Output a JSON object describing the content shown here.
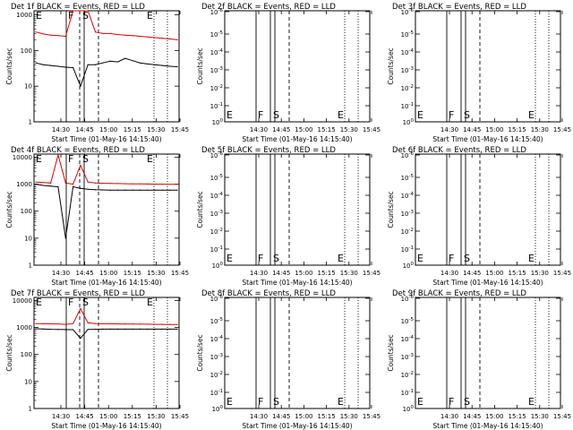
{
  "colors": {
    "events": "#000000",
    "lld": "#e00000",
    "axis": "#000000",
    "background": "#ffffff"
  },
  "chart_data": [
    {
      "type": "line",
      "title": "Det 1f BLACK = Events, RED = LLD",
      "xlabel": "Start Time (01-May-16 14:15:40)",
      "ylabel": "Counts/sec",
      "xticks": [
        "14:30",
        "14:45",
        "15:00",
        "15:15",
        "15:30",
        "15:45"
      ],
      "yticks": [
        "1",
        "10",
        "100",
        "1000"
      ],
      "yscale": "log",
      "ylim": [
        1,
        1300
      ],
      "markers": [
        "E",
        "F",
        "S",
        "E"
      ],
      "dotted_grid_x": [
        "15:30",
        "15:45"
      ],
      "series": [
        {
          "values": [
            330,
            290,
            270,
            260,
            250,
            1300,
            1300,
            1300,
            330,
            300,
            300,
            280,
            270,
            260,
            250,
            240,
            230,
            220,
            210,
            200
          ]
        },
        {
          "values": [
            45,
            40,
            38,
            36,
            34,
            33,
            10,
            40,
            40,
            45,
            50,
            48,
            60,
            52,
            45,
            42,
            40,
            38,
            36,
            35
          ]
        }
      ]
    },
    {
      "type": "line",
      "title": "Det 2f BLACK = Events, RED = LLD",
      "xlabel": "Start Time (01-May-16 14:15:40)",
      "ylabel": "Counts/sec",
      "xticks": [
        "14:30",
        "14:45",
        "15:00",
        "15:15",
        "15:30",
        "15:45"
      ],
      "yticks": [
        "10^0",
        "10^-1",
        "10^-2",
        "10^-3",
        "10^-4",
        "10^-5",
        "10^-6"
      ],
      "markers": [
        "E",
        "F",
        "S",
        "E"
      ],
      "series": []
    },
    {
      "type": "line",
      "title": "Det 3f BLACK = Events, RED = LLD",
      "xlabel": "Start Time (01-May-16 14:15:40)",
      "ylabel": "Counts/sec",
      "xticks": [
        "14:30",
        "14:45",
        "15:00",
        "15:15",
        "15:30",
        "15:45"
      ],
      "yticks": [
        "10^0",
        "10^-1",
        "10^-2",
        "10^-3",
        "10^-4",
        "10^-5",
        "10^-6"
      ],
      "markers": [
        "E",
        "F",
        "S",
        "E"
      ],
      "series": []
    },
    {
      "type": "line",
      "title": "Det 4f BLACK = Events, RED = LLD",
      "xlabel": "Start Time (01-May-16 14:15:40)",
      "ylabel": "Counts/sec",
      "xticks": [
        "14:30",
        "14:45",
        "15:00",
        "15:15",
        "15:30",
        "15:45"
      ],
      "yticks": [
        "1",
        "10",
        "100",
        "1000",
        "10000"
      ],
      "yscale": "log",
      "ylim": [
        1,
        13000
      ],
      "markers": [
        "E",
        "F",
        "S",
        "E"
      ],
      "dotted_grid_x": [
        "15:30",
        "15:45"
      ],
      "series": [
        {
          "values": [
            1200,
            1150,
            1100,
            12000,
            1100,
            1000,
            5000,
            1200,
            1100,
            1080,
            1060,
            1050,
            1040,
            1030,
            1020,
            1010,
            1000,
            1000,
            990,
            980
          ]
        },
        {
          "values": [
            1000,
            900,
            850,
            800,
            10,
            800,
            700,
            650,
            620,
            610,
            600,
            600,
            600,
            600,
            600,
            600,
            600,
            600,
            600,
            600
          ]
        }
      ]
    },
    {
      "type": "line",
      "title": "Det 5f BLACK = Events, RED = LLD",
      "xlabel": "Start Time (01-May-16 14:15:40)",
      "ylabel": "Counts/sec",
      "xticks": [
        "14:30",
        "14:45",
        "15:00",
        "15:15",
        "15:30",
        "15:45"
      ],
      "yticks": [
        "10^0",
        "10^-1",
        "10^-2",
        "10^-3",
        "10^-4",
        "10^-5",
        "10^-6"
      ],
      "markers": [
        "E",
        "F",
        "S",
        "E"
      ],
      "series": []
    },
    {
      "type": "line",
      "title": "Det 6f BLACK = Events, RED = LLD",
      "xlabel": "Start Time (01-May-16 14:15:40)",
      "ylabel": "Counts/sec",
      "xticks": [
        "14:30",
        "14:45",
        "15:00",
        "15:15",
        "15:30",
        "15:45"
      ],
      "yticks": [
        "10^0",
        "10^-1",
        "10^-2",
        "10^-3",
        "10^-4",
        "10^-5",
        "10^-6"
      ],
      "markers": [
        "E",
        "F",
        "S",
        "E"
      ],
      "series": []
    },
    {
      "type": "line",
      "title": "Det 7f BLACK = Events, RED = LLD",
      "xlabel": "Start Time (01-May-16 14:15:40)",
      "ylabel": "Counts/sec",
      "xticks": [
        "14:30",
        "14:45",
        "15:00",
        "15:15",
        "15:30",
        "15:45"
      ],
      "yticks": [
        "1",
        "10",
        "100",
        "1000",
        "10000"
      ],
      "yscale": "log",
      "ylim": [
        1,
        13000
      ],
      "markers": [
        "E",
        "F",
        "S",
        "E"
      ],
      "dotted_grid_x": [
        "15:30",
        "15:45"
      ],
      "series": [
        {
          "values": [
            1400,
            1380,
            1370,
            1360,
            1300,
            1400,
            5000,
            1500,
            1400,
            1380,
            1370,
            1360,
            1350,
            1340,
            1330,
            1320,
            1310,
            1300,
            1290,
            1280
          ]
        },
        {
          "values": [
            900,
            880,
            860,
            850,
            840,
            830,
            400,
            850,
            860,
            870,
            870,
            870,
            870,
            870,
            870,
            870,
            870,
            870,
            870,
            870
          ]
        }
      ]
    },
    {
      "type": "line",
      "title": "Det 8f BLACK = Events, RED = LLD",
      "xlabel": "Start Time (01-May-16 14:15:40)",
      "ylabel": "Counts/sec",
      "xticks": [
        "14:30",
        "14:45",
        "15:00",
        "15:15",
        "15:30",
        "15:45"
      ],
      "yticks": [
        "10^0",
        "10^-1",
        "10^-2",
        "10^-3",
        "10^-4",
        "10^-5",
        "10^-6"
      ],
      "markers": [
        "E",
        "F",
        "S",
        "E"
      ],
      "series": []
    },
    {
      "type": "line",
      "title": "Det 9f BLACK = Events, RED = LLD",
      "xlabel": "Start Time (01-May-16 14:15:40)",
      "ylabel": "Counts/sec",
      "xticks": [
        "14:30",
        "14:45",
        "15:00",
        "15:15",
        "15:30",
        "15:45"
      ],
      "yticks": [
        "10^0",
        "10^-1",
        "10^-2",
        "10^-3",
        "10^-4",
        "10^-5",
        "10^-6"
      ],
      "markers": [
        "E",
        "F",
        "S",
        "E"
      ],
      "series": []
    }
  ]
}
